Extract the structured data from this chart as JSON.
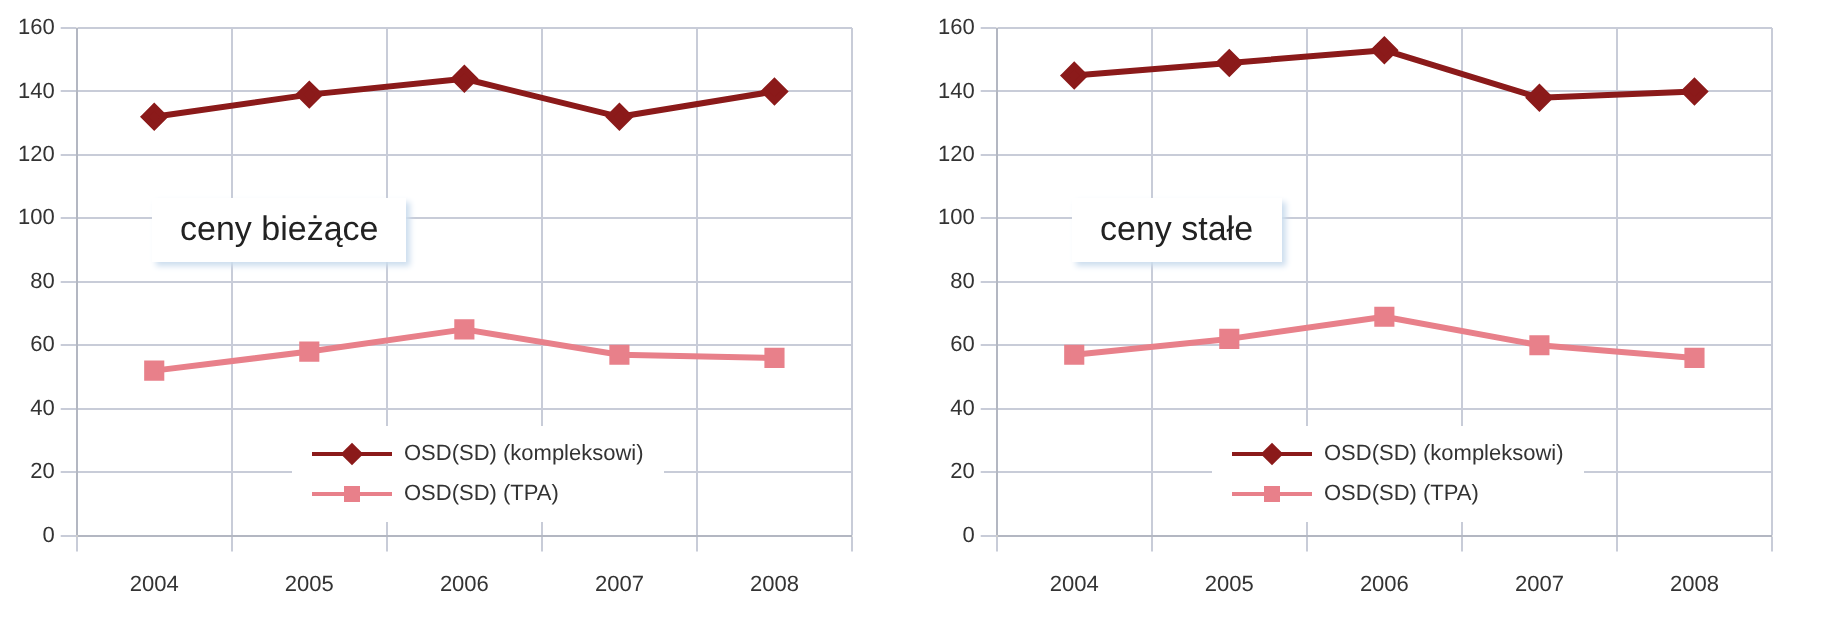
{
  "chart_data": [
    {
      "type": "line",
      "categories": [
        "2004",
        "2005",
        "2006",
        "2007",
        "2008"
      ],
      "series": [
        {
          "name": "OSD(SD) (kompleksowi)",
          "color": "#8b1a1a",
          "marker": "diamond",
          "values": [
            132,
            139,
            144,
            132,
            140
          ]
        },
        {
          "name": "OSD(SD) (TPA)",
          "color": "#e8808a",
          "marker": "square",
          "values": [
            52,
            58,
            65,
            57,
            56
          ]
        }
      ],
      "ylim": [
        0,
        160
      ],
      "yticks": [
        0,
        20,
        40,
        60,
        80,
        100,
        120,
        140,
        160
      ],
      "grid": true,
      "legend": "bottom",
      "annotations": [
        "ceny bieżące"
      ]
    },
    {
      "type": "line",
      "categories": [
        "2004",
        "2005",
        "2006",
        "2007",
        "2008"
      ],
      "series": [
        {
          "name": "OSD(SD) (kompleksowi)",
          "color": "#8b1a1a",
          "marker": "diamond",
          "values": [
            145,
            149,
            153,
            138,
            140
          ]
        },
        {
          "name": "OSD(SD) (TPA)",
          "color": "#e8808a",
          "marker": "square",
          "values": [
            57,
            62,
            69,
            60,
            56
          ]
        }
      ],
      "ylim": [
        0,
        160
      ],
      "yticks": [
        0,
        20,
        40,
        60,
        80,
        100,
        120,
        140,
        160
      ],
      "grid": true,
      "legend": "bottom",
      "annotations": [
        "ceny stałe"
      ]
    }
  ]
}
